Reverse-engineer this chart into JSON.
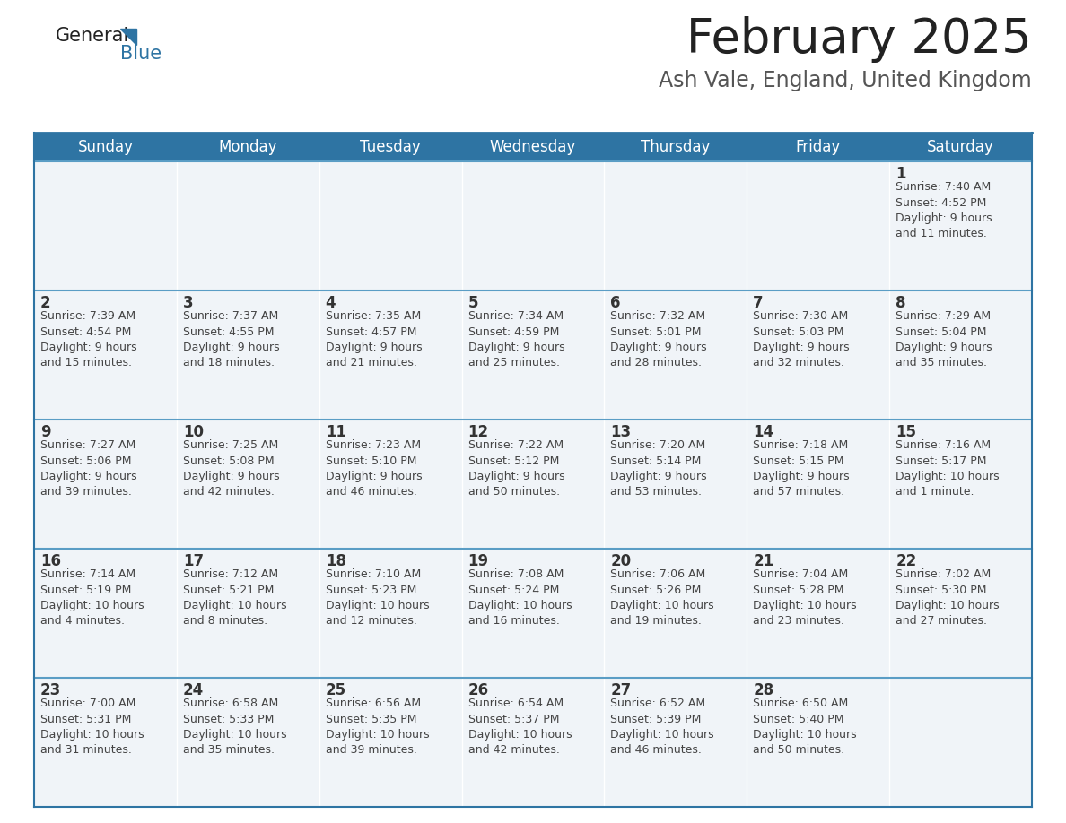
{
  "title": "February 2025",
  "subtitle": "Ash Vale, England, United Kingdom",
  "header_color": "#2e74a3",
  "header_text_color": "#ffffff",
  "cell_bg_color": "#f0f4f8",
  "border_color": "#2e74a3",
  "row_border_color": "#5a9dc5",
  "day_number_color": "#333333",
  "info_text_color": "#444444",
  "days_of_week": [
    "Sunday",
    "Monday",
    "Tuesday",
    "Wednesday",
    "Thursday",
    "Friday",
    "Saturday"
  ],
  "weeks": [
    [
      {
        "day": null,
        "info": null
      },
      {
        "day": null,
        "info": null
      },
      {
        "day": null,
        "info": null
      },
      {
        "day": null,
        "info": null
      },
      {
        "day": null,
        "info": null
      },
      {
        "day": null,
        "info": null
      },
      {
        "day": 1,
        "info": "Sunrise: 7:40 AM\nSunset: 4:52 PM\nDaylight: 9 hours\nand 11 minutes."
      }
    ],
    [
      {
        "day": 2,
        "info": "Sunrise: 7:39 AM\nSunset: 4:54 PM\nDaylight: 9 hours\nand 15 minutes."
      },
      {
        "day": 3,
        "info": "Sunrise: 7:37 AM\nSunset: 4:55 PM\nDaylight: 9 hours\nand 18 minutes."
      },
      {
        "day": 4,
        "info": "Sunrise: 7:35 AM\nSunset: 4:57 PM\nDaylight: 9 hours\nand 21 minutes."
      },
      {
        "day": 5,
        "info": "Sunrise: 7:34 AM\nSunset: 4:59 PM\nDaylight: 9 hours\nand 25 minutes."
      },
      {
        "day": 6,
        "info": "Sunrise: 7:32 AM\nSunset: 5:01 PM\nDaylight: 9 hours\nand 28 minutes."
      },
      {
        "day": 7,
        "info": "Sunrise: 7:30 AM\nSunset: 5:03 PM\nDaylight: 9 hours\nand 32 minutes."
      },
      {
        "day": 8,
        "info": "Sunrise: 7:29 AM\nSunset: 5:04 PM\nDaylight: 9 hours\nand 35 minutes."
      }
    ],
    [
      {
        "day": 9,
        "info": "Sunrise: 7:27 AM\nSunset: 5:06 PM\nDaylight: 9 hours\nand 39 minutes."
      },
      {
        "day": 10,
        "info": "Sunrise: 7:25 AM\nSunset: 5:08 PM\nDaylight: 9 hours\nand 42 minutes."
      },
      {
        "day": 11,
        "info": "Sunrise: 7:23 AM\nSunset: 5:10 PM\nDaylight: 9 hours\nand 46 minutes."
      },
      {
        "day": 12,
        "info": "Sunrise: 7:22 AM\nSunset: 5:12 PM\nDaylight: 9 hours\nand 50 minutes."
      },
      {
        "day": 13,
        "info": "Sunrise: 7:20 AM\nSunset: 5:14 PM\nDaylight: 9 hours\nand 53 minutes."
      },
      {
        "day": 14,
        "info": "Sunrise: 7:18 AM\nSunset: 5:15 PM\nDaylight: 9 hours\nand 57 minutes."
      },
      {
        "day": 15,
        "info": "Sunrise: 7:16 AM\nSunset: 5:17 PM\nDaylight: 10 hours\nand 1 minute."
      }
    ],
    [
      {
        "day": 16,
        "info": "Sunrise: 7:14 AM\nSunset: 5:19 PM\nDaylight: 10 hours\nand 4 minutes."
      },
      {
        "day": 17,
        "info": "Sunrise: 7:12 AM\nSunset: 5:21 PM\nDaylight: 10 hours\nand 8 minutes."
      },
      {
        "day": 18,
        "info": "Sunrise: 7:10 AM\nSunset: 5:23 PM\nDaylight: 10 hours\nand 12 minutes."
      },
      {
        "day": 19,
        "info": "Sunrise: 7:08 AM\nSunset: 5:24 PM\nDaylight: 10 hours\nand 16 minutes."
      },
      {
        "day": 20,
        "info": "Sunrise: 7:06 AM\nSunset: 5:26 PM\nDaylight: 10 hours\nand 19 minutes."
      },
      {
        "day": 21,
        "info": "Sunrise: 7:04 AM\nSunset: 5:28 PM\nDaylight: 10 hours\nand 23 minutes."
      },
      {
        "day": 22,
        "info": "Sunrise: 7:02 AM\nSunset: 5:30 PM\nDaylight: 10 hours\nand 27 minutes."
      }
    ],
    [
      {
        "day": 23,
        "info": "Sunrise: 7:00 AM\nSunset: 5:31 PM\nDaylight: 10 hours\nand 31 minutes."
      },
      {
        "day": 24,
        "info": "Sunrise: 6:58 AM\nSunset: 5:33 PM\nDaylight: 10 hours\nand 35 minutes."
      },
      {
        "day": 25,
        "info": "Sunrise: 6:56 AM\nSunset: 5:35 PM\nDaylight: 10 hours\nand 39 minutes."
      },
      {
        "day": 26,
        "info": "Sunrise: 6:54 AM\nSunset: 5:37 PM\nDaylight: 10 hours\nand 42 minutes."
      },
      {
        "day": 27,
        "info": "Sunrise: 6:52 AM\nSunset: 5:39 PM\nDaylight: 10 hours\nand 46 minutes."
      },
      {
        "day": 28,
        "info": "Sunrise: 6:50 AM\nSunset: 5:40 PM\nDaylight: 10 hours\nand 50 minutes."
      },
      {
        "day": null,
        "info": null
      }
    ]
  ],
  "title_fontsize": 38,
  "subtitle_fontsize": 17,
  "header_fontsize": 12,
  "day_num_fontsize": 12,
  "info_fontsize": 9.0,
  "fig_width": 11.88,
  "fig_height": 9.18
}
